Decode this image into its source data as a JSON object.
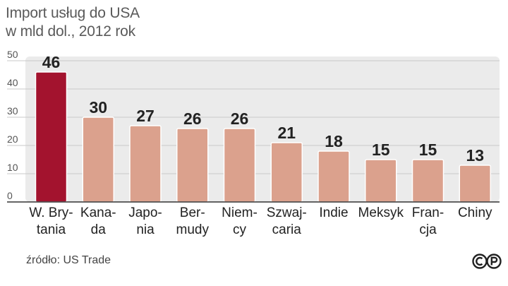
{
  "title_line1": "Import usług do USA",
  "title_line2": "w mld dol., 2012 rok",
  "source": "źródło: US Trade",
  "colors": {
    "highlight": "#a3132e",
    "bar": "#dba18d",
    "panel": "#ebebeb",
    "grid": "#c9c9c9",
    "axis": "#333333"
  },
  "chart_data": {
    "type": "bar",
    "title": "Import usług do USA",
    "subtitle": "w mld dol., 2012 rok",
    "xlabel": "",
    "ylabel": "",
    "ylim": [
      0,
      50
    ],
    "yticks": [
      0,
      10,
      20,
      30,
      40,
      50
    ],
    "grid": true,
    "categories": [
      [
        "W. Bry-",
        "tania"
      ],
      [
        "Kana-",
        "da"
      ],
      [
        "Japo-",
        "nia"
      ],
      [
        "Ber-",
        "mudy"
      ],
      [
        "Niem-",
        "cy"
      ],
      [
        "Szwaj-",
        "caria"
      ],
      [
        "Indie"
      ],
      [
        "Meksyk"
      ],
      [
        "Fran-",
        "cja"
      ],
      [
        "Chiny"
      ]
    ],
    "values": [
      46,
      30,
      27,
      26,
      26,
      21,
      18,
      15,
      15,
      13
    ],
    "highlight_index": 0
  }
}
